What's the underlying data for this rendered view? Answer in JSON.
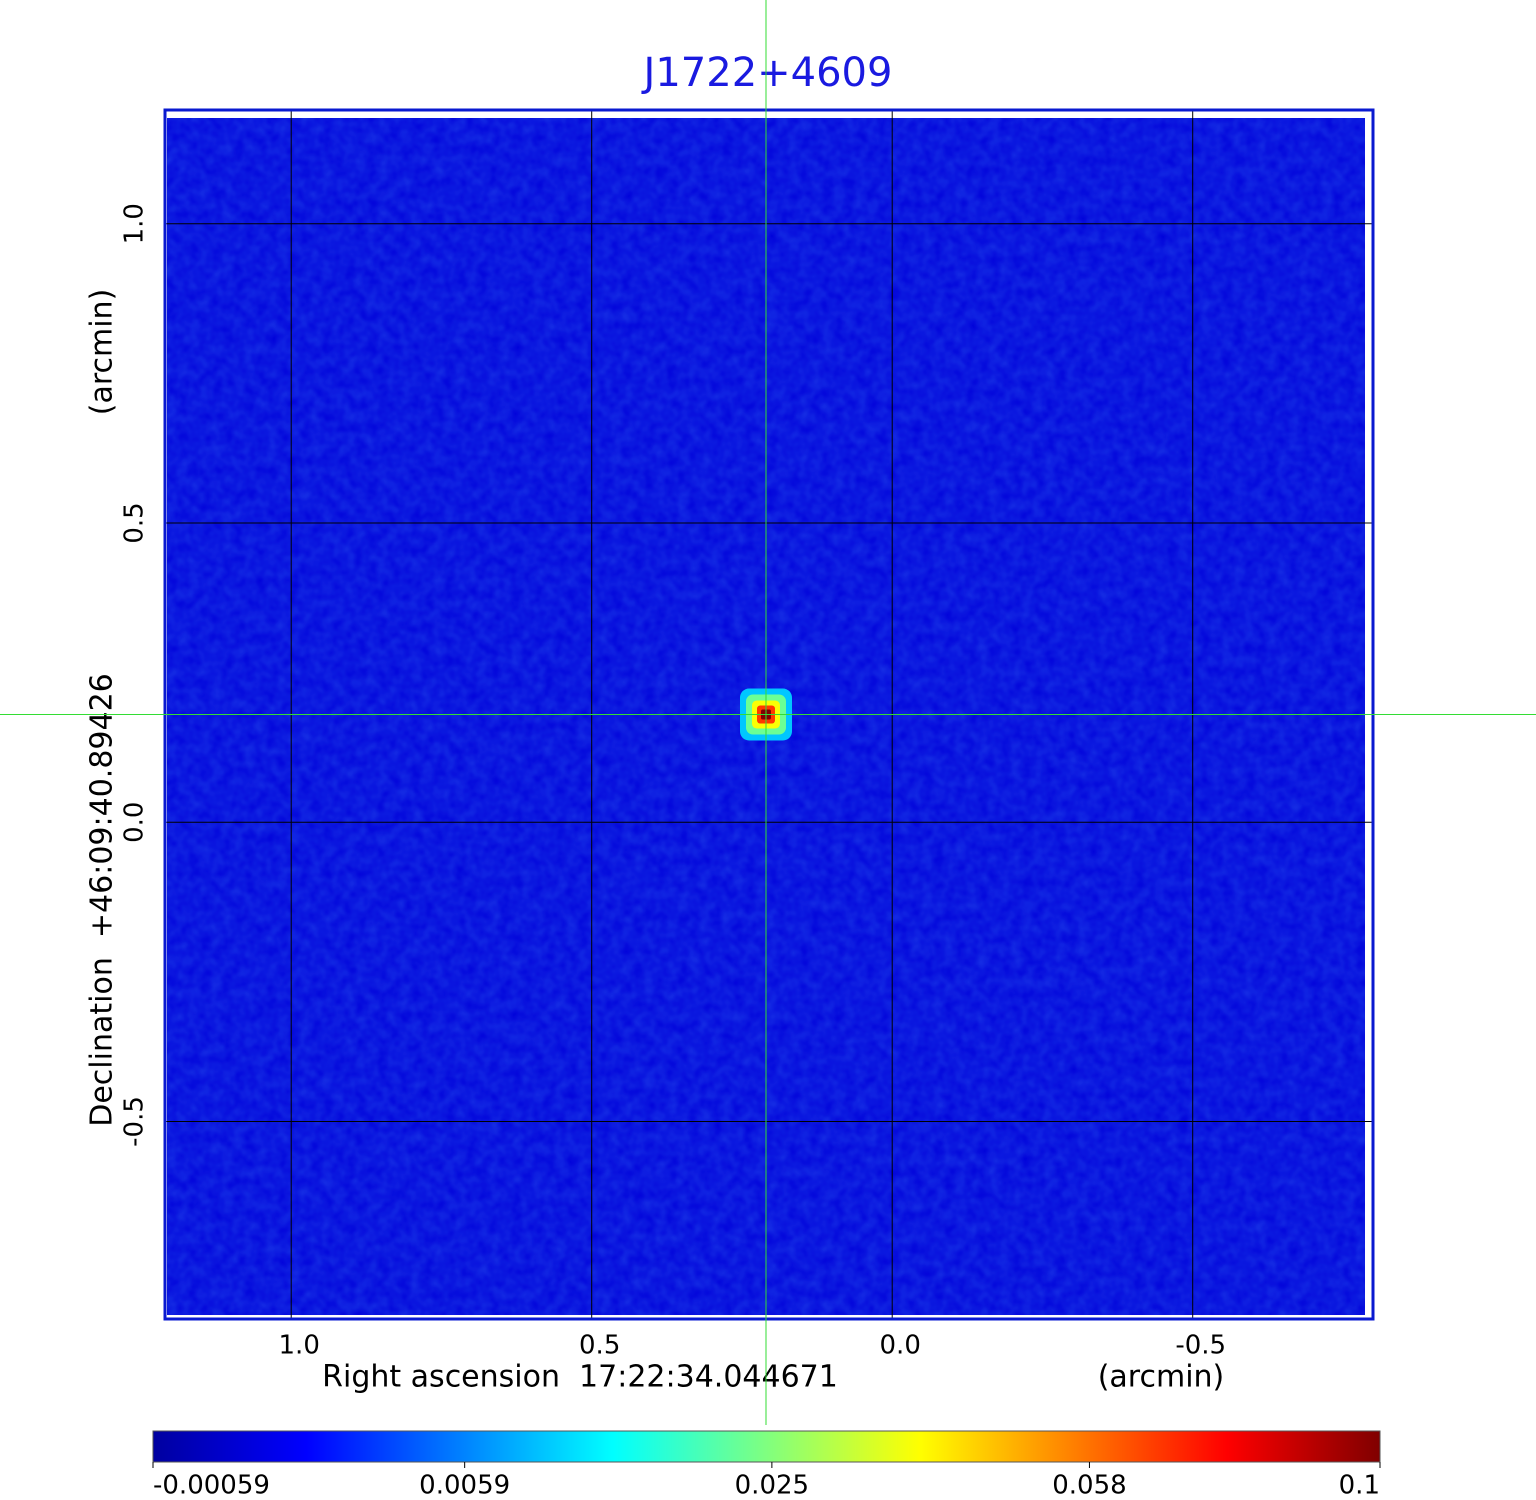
{
  "chart_data": {
    "type": "image",
    "title": "J1722+4609",
    "x_label": "Right ascension  17:22:34.044671",
    "x_unit": "(arcmin)",
    "y_label": "Declination  +46:09:40.89426",
    "y_unit": "(arcmin)",
    "xlim": [
      1.21,
      -0.8
    ],
    "ylim": [
      -0.83,
      1.19
    ],
    "xticks": [
      {
        "value": 1,
        "label": "1.0"
      },
      0.5,
      {
        "value": 0,
        "label": "0.0"
      },
      -0.5
    ],
    "yticks": [
      {
        "value": 1,
        "label": "1.0"
      },
      0.5,
      {
        "value": 0,
        "label": "0.0"
      },
      -0.5
    ],
    "grid": true,
    "grid_color": "#000000",
    "frame_color": "#0a1ad0",
    "title_color": "#1a1ae0",
    "source": {
      "x": 0.21,
      "y": 0.18,
      "peak": 0.1
    },
    "crosshair": {
      "x": 0.21,
      "y": 0.18,
      "color": "#33dd33"
    },
    "colorbar": {
      "clim": [
        -0.00059,
        0.1
      ],
      "scale": "sqrt",
      "ticks": [
        -0.00059,
        0.0059,
        0.025,
        0.058,
        0.1
      ]
    },
    "background_level": 0
  }
}
